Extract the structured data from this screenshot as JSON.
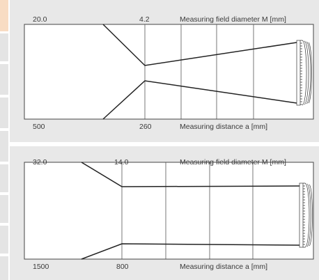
{
  "diagrams": [
    {
      "top": {
        "far_diameter": "20.0",
        "near_diameter": "4.2",
        "title": "Measuring field diameter M [mm]"
      },
      "bottom": {
        "far_distance": "500",
        "near_distance": "260",
        "title": "Measuring distance a [mm]"
      }
    },
    {
      "top": {
        "far_diameter": "32.0",
        "near_diameter": "14.0",
        "title": "Measuring field diameter M [mm]"
      },
      "bottom": {
        "far_distance": "1500",
        "near_distance": "800",
        "title": "Measuring distance a [mm]"
      }
    }
  ],
  "colors": {
    "panel_bg": "#e8e8e8",
    "plot_bg": "#ffffff",
    "line": "#222222",
    "grid": "#555555",
    "text": "#3a3a3a",
    "accent_strip": "#f8dcc3",
    "neutral_strip": "#e4e4e4"
  },
  "icons": [
    "lens-icon"
  ]
}
